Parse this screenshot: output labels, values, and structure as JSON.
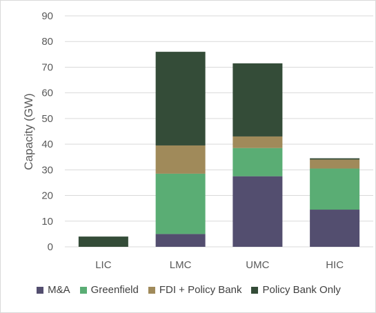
{
  "chart_data": {
    "type": "bar",
    "stacked": true,
    "ylabel": "Capacity (GW)",
    "ylim": [
      0,
      90
    ],
    "yticks": [
      0,
      10,
      20,
      30,
      40,
      50,
      60,
      70,
      80,
      90
    ],
    "grid": true,
    "legend_position": "bottom",
    "categories": [
      "LIC",
      "LMC",
      "UMC",
      "HIC"
    ],
    "series": [
      {
        "name": "M&A",
        "color": "#534e6f",
        "values": [
          0,
          5.0,
          27.5,
          14.5
        ]
      },
      {
        "name": "Greenfield",
        "color": "#5aad74",
        "values": [
          0,
          23.5,
          11.0,
          16.0
        ]
      },
      {
        "name": "FDI + Policy Bank",
        "color": "#a08a5a",
        "values": [
          0,
          11.0,
          4.5,
          3.5
        ]
      },
      {
        "name": "Policy Bank Only",
        "color": "#344c38",
        "values": [
          4.0,
          36.5,
          28.5,
          0.5
        ]
      }
    ]
  }
}
